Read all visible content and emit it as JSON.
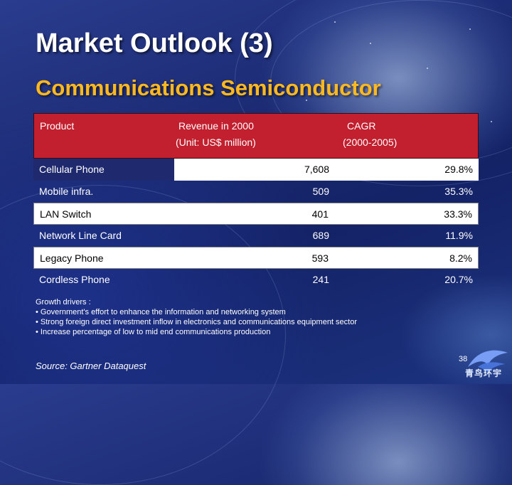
{
  "slide": {
    "title": "Market Outlook (3)",
    "subtitle": "Communications Semiconductor",
    "page_number": "38",
    "logo_text": "青鸟环宇"
  },
  "table": {
    "headers": {
      "product": "Product",
      "revenue_line1": "Revenue in 2000",
      "revenue_line2": "(Unit: US$ million)",
      "cagr_line1": "CAGR",
      "cagr_line2": "(2000-2005)"
    },
    "rows": [
      {
        "product": "Cellular Phone",
        "revenue": "7,608",
        "cagr": "29.8%"
      },
      {
        "product": "Mobile infra.",
        "revenue": "509",
        "cagr": "35.3%"
      },
      {
        "product": "LAN Switch",
        "revenue": "401",
        "cagr": "33.3%"
      },
      {
        "product": "Network Line Card",
        "revenue": "689",
        "cagr": "11.9%"
      },
      {
        "product": "Legacy Phone",
        "revenue": "593",
        "cagr": "8.2%"
      },
      {
        "product": "Cordless Phone",
        "revenue": "241",
        "cagr": "20.7%"
      }
    ]
  },
  "drivers": {
    "heading": "Growth drivers :",
    "items": [
      "• Government's effort to enhance the information and networking system",
      "• Strong foreign direct investment inflow in electronics and communications equipment sector",
      "• Increase percentage of low to mid end communications production"
    ]
  },
  "source": "Source: Gartner Dataquest",
  "colors": {
    "title": "#ffffff",
    "subtitle": "#ffb81e",
    "header_bg": "#c2202f",
    "background": "#1c2b74"
  }
}
